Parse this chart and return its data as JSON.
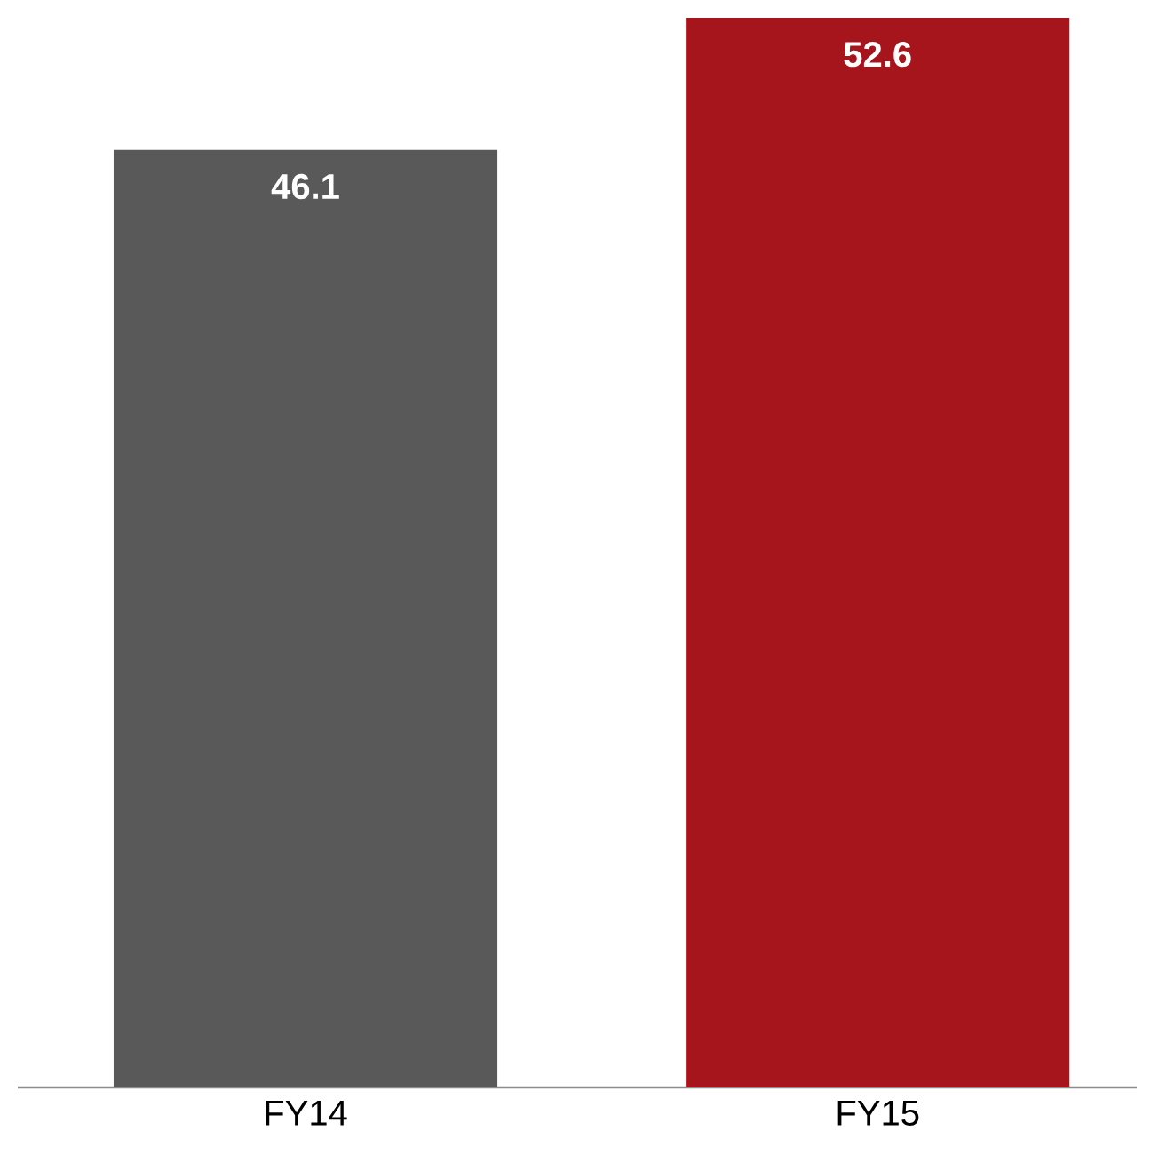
{
  "chart_data": {
    "type": "bar",
    "categories": [
      "FY14",
      "FY15"
    ],
    "values": [
      46.1,
      52.6
    ],
    "colors": [
      "#595959",
      "#a6141c"
    ],
    "data_labels": true
  }
}
